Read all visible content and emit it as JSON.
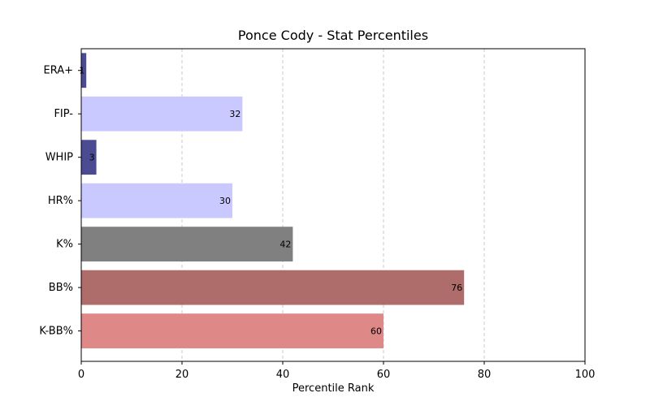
{
  "chart_data": {
    "type": "bar",
    "orientation": "horizontal",
    "title": "Ponce Cody - Stat Percentiles",
    "xlabel": "Percentile Rank",
    "ylabel": "",
    "xlim": [
      0,
      100
    ],
    "xticks": [
      0,
      20,
      40,
      60,
      80,
      100
    ],
    "grid": "x-dashed",
    "categories": [
      "ERA+",
      "FIP-",
      "WHIP",
      "HR%",
      "K%",
      "BB%",
      "K-BB%"
    ],
    "values": [
      1,
      32,
      3,
      30,
      42,
      76,
      60
    ],
    "colors": [
      "#4b4b94",
      "#cac9ff",
      "#4b4b94",
      "#cac9ff",
      "#808080",
      "#ae6c6b",
      "#de8887"
    ]
  }
}
